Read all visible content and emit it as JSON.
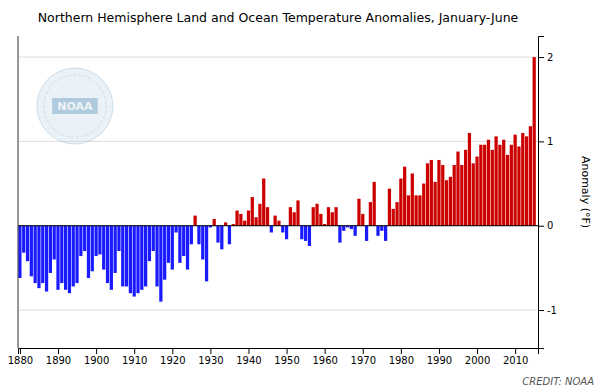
{
  "chart_data": {
    "type": "bar",
    "title": "Northern Hemisphere Land and Ocean Temperature Anomalies, January-June",
    "y_label": "Anomaly (°F)",
    "annotations": [
      "CREDIT: NOAA",
      "NOAA"
    ],
    "x": [
      1880,
      1881,
      1882,
      1883,
      1884,
      1885,
      1886,
      1887,
      1888,
      1889,
      1890,
      1891,
      1892,
      1893,
      1894,
      1895,
      1896,
      1897,
      1898,
      1899,
      1900,
      1901,
      1902,
      1903,
      1904,
      1905,
      1906,
      1907,
      1908,
      1909,
      1910,
      1911,
      1912,
      1913,
      1914,
      1915,
      1916,
      1917,
      1918,
      1919,
      1920,
      1921,
      1922,
      1923,
      1924,
      1925,
      1926,
      1927,
      1928,
      1929,
      1930,
      1931,
      1932,
      1933,
      1934,
      1935,
      1936,
      1937,
      1938,
      1939,
      1940,
      1941,
      1942,
      1943,
      1944,
      1945,
      1946,
      1947,
      1948,
      1949,
      1950,
      1951,
      1952,
      1953,
      1954,
      1955,
      1956,
      1957,
      1958,
      1959,
      1960,
      1961,
      1962,
      1963,
      1964,
      1965,
      1966,
      1967,
      1968,
      1969,
      1970,
      1971,
      1972,
      1973,
      1974,
      1975,
      1976,
      1977,
      1978,
      1979,
      1980,
      1981,
      1982,
      1983,
      1984,
      1985,
      1986,
      1987,
      1988,
      1989,
      1990,
      1991,
      1992,
      1993,
      1994,
      1995,
      1996,
      1997,
      1998,
      1999,
      2000,
      2001,
      2002,
      2003,
      2004,
      2005,
      2006,
      2007,
      2008,
      2009,
      2010,
      2011,
      2012,
      2013,
      2014,
      2015
    ],
    "values": [
      -0.62,
      -0.32,
      -0.42,
      -0.6,
      -0.68,
      -0.74,
      -0.68,
      -0.78,
      -0.56,
      -0.4,
      -0.76,
      -0.68,
      -0.76,
      -0.8,
      -0.72,
      -0.68,
      -0.36,
      -0.3,
      -0.62,
      -0.54,
      -0.36,
      -0.34,
      -0.52,
      -0.68,
      -0.76,
      -0.56,
      -0.3,
      -0.72,
      -0.72,
      -0.8,
      -0.84,
      -0.8,
      -0.76,
      -0.72,
      -0.42,
      -0.3,
      -0.72,
      -0.9,
      -0.64,
      -0.44,
      -0.52,
      -0.08,
      -0.44,
      -0.36,
      -0.52,
      -0.22,
      0.12,
      -0.22,
      -0.4,
      -0.66,
      -0.02,
      0.08,
      -0.2,
      -0.28,
      0.04,
      -0.22,
      0.02,
      0.18,
      0.14,
      0.06,
      0.18,
      0.34,
      0.1,
      0.26,
      0.56,
      0.22,
      -0.08,
      0.12,
      0.06,
      -0.08,
      -0.16,
      0.22,
      0.16,
      0.3,
      -0.16,
      -0.18,
      -0.24,
      0.22,
      0.26,
      0.14,
      0.02,
      0.22,
      0.16,
      0.22,
      -0.2,
      -0.06,
      -0.02,
      -0.04,
      -0.12,
      0.32,
      0.14,
      -0.18,
      0.28,
      0.52,
      -0.12,
      -0.06,
      -0.18,
      0.44,
      0.2,
      0.28,
      0.56,
      0.7,
      0.36,
      0.62,
      0.36,
      0.36,
      0.5,
      0.74,
      0.78,
      0.52,
      0.78,
      0.72,
      0.54,
      0.58,
      0.72,
      0.88,
      0.72,
      0.9,
      1.1,
      0.74,
      0.82,
      0.96,
      0.96,
      1.02,
      0.9,
      1.06,
      0.96,
      1.02,
      0.84,
      0.96,
      1.08,
      0.94,
      1.1,
      1.06,
      1.18,
      2.0
    ],
    "colors": [
      "#1a1aff",
      "#1a1aff",
      "#1a1aff",
      "#1a1aff",
      "#1a1aff",
      "#1a1aff",
      "#1a1aff",
      "#1a1aff",
      "#1a1aff",
      "#1a1aff",
      "#1a1aff",
      "#1a1aff",
      "#1a1aff",
      "#1a1aff",
      "#1a1aff",
      "#1a1aff",
      "#1a1aff",
      "#1a1aff",
      "#1a1aff",
      "#1a1aff",
      "#1a1aff",
      "#1a1aff",
      "#1a1aff",
      "#1a1aff",
      "#1a1aff",
      "#1a1aff",
      "#1a1aff",
      "#1a1aff",
      "#1a1aff",
      "#1a1aff",
      "#1a1aff",
      "#1a1aff",
      "#1a1aff",
      "#1a1aff",
      "#1a1aff",
      "#1a1aff",
      "#1a1aff",
      "#1a1aff",
      "#1a1aff",
      "#1a1aff",
      "#1a1aff",
      "#1a1aff",
      "#1a1aff",
      "#1a1aff",
      "#1a1aff",
      "#1a1aff",
      "#cc0000",
      "#1a1aff",
      "#1a1aff",
      "#1a1aff",
      "#1a1aff",
      "#cc0000",
      "#1a1aff",
      "#1a1aff",
      "#cc0000",
      "#1a1aff",
      "#cc0000",
      "#cc0000",
      "#cc0000",
      "#cc0000",
      "#cc0000",
      "#cc0000",
      "#cc0000",
      "#cc0000",
      "#cc0000",
      "#cc0000",
      "#1a1aff",
      "#cc0000",
      "#cc0000",
      "#1a1aff",
      "#1a1aff",
      "#cc0000",
      "#cc0000",
      "#cc0000",
      "#1a1aff",
      "#1a1aff",
      "#1a1aff",
      "#cc0000",
      "#cc0000",
      "#cc0000",
      "#cc0000",
      "#cc0000",
      "#cc0000",
      "#cc0000",
      "#1a1aff",
      "#1a1aff",
      "#1a1aff",
      "#1a1aff",
      "#1a1aff",
      "#cc0000",
      "#cc0000",
      "#1a1aff",
      "#cc0000",
      "#cc0000",
      "#1a1aff",
      "#1a1aff",
      "#1a1aff",
      "#cc0000",
      "#cc0000",
      "#cc0000",
      "#cc0000",
      "#cc0000",
      "#cc0000",
      "#cc0000",
      "#cc0000",
      "#cc0000",
      "#cc0000",
      "#cc0000",
      "#cc0000",
      "#cc0000",
      "#cc0000",
      "#cc0000",
      "#cc0000",
      "#cc0000",
      "#cc0000",
      "#cc0000",
      "#cc0000",
      "#cc0000",
      "#cc0000",
      "#cc0000",
      "#cc0000",
      "#cc0000",
      "#cc0000",
      "#cc0000",
      "#cc0000",
      "#cc0000",
      "#cc0000",
      "#cc0000",
      "#cc0000",
      "#cc0000",
      "#cc0000",
      "#cc0000",
      "#cc0000",
      "#cc0000",
      "#cc0000",
      "#cc0000"
    ],
    "xlim": [
      1879.5,
      2016
    ],
    "xticks": [
      1880,
      1890,
      1900,
      1910,
      1920,
      1930,
      1940,
      1950,
      1960,
      1970,
      1980,
      1990,
      2000,
      2010
    ],
    "ylim": [
      -1.45,
      2.25
    ],
    "yticks": [
      -1,
      0,
      1,
      2
    ],
    "grid": true
  }
}
